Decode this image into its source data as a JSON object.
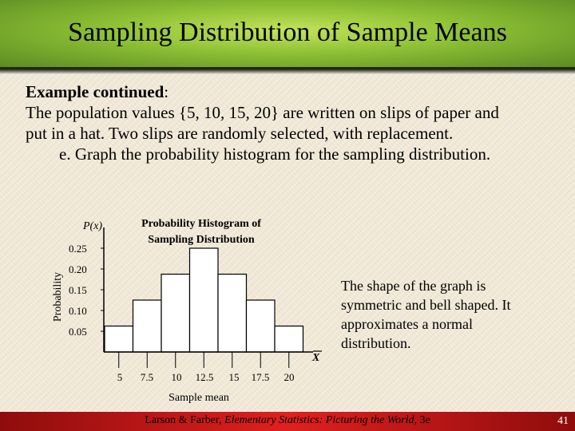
{
  "slide": {
    "title": "Sampling Distribution of Sample Means",
    "intro_bold": "Example continued",
    "intro_colon": ":",
    "line1": "The population values {5, 10, 15, 20} are written on slips of paper and",
    "line2": "put in a hat.  Two slips are randomly selected, with replacement.",
    "line3": "e.   Graph the probability histogram for the sampling distribution.",
    "side_note": "The shape of the graph is symmetric and bell shaped. It approximates a normal distribution.",
    "footer_author": "Larson & Farber, ",
    "footer_book": "Elementary Statistics: Picturing the World",
    "footer_edition": ", 3e",
    "page_number": "41"
  },
  "chart_data": {
    "type": "bar",
    "title": "Probability Histogram of Sampling Distribution",
    "title_lines": [
      "Probability Histogram of",
      "Sampling Distribution"
    ],
    "ylabel": "Probability",
    "y_axis_symbol": "P(x)",
    "xlabel": "Sample mean",
    "x_axis_symbol": "X",
    "categories": [
      "5",
      "7.5",
      "10",
      "12.5",
      "15",
      "17.5",
      "20"
    ],
    "values": [
      0.0625,
      0.125,
      0.1875,
      0.25,
      0.1875,
      0.125,
      0.0625
    ],
    "y_ticks": [
      "0.05",
      "0.10",
      "0.15",
      "0.20",
      "0.25"
    ],
    "ylim": [
      0,
      0.28
    ],
    "grid": false,
    "bar_color": "#ffffff"
  }
}
